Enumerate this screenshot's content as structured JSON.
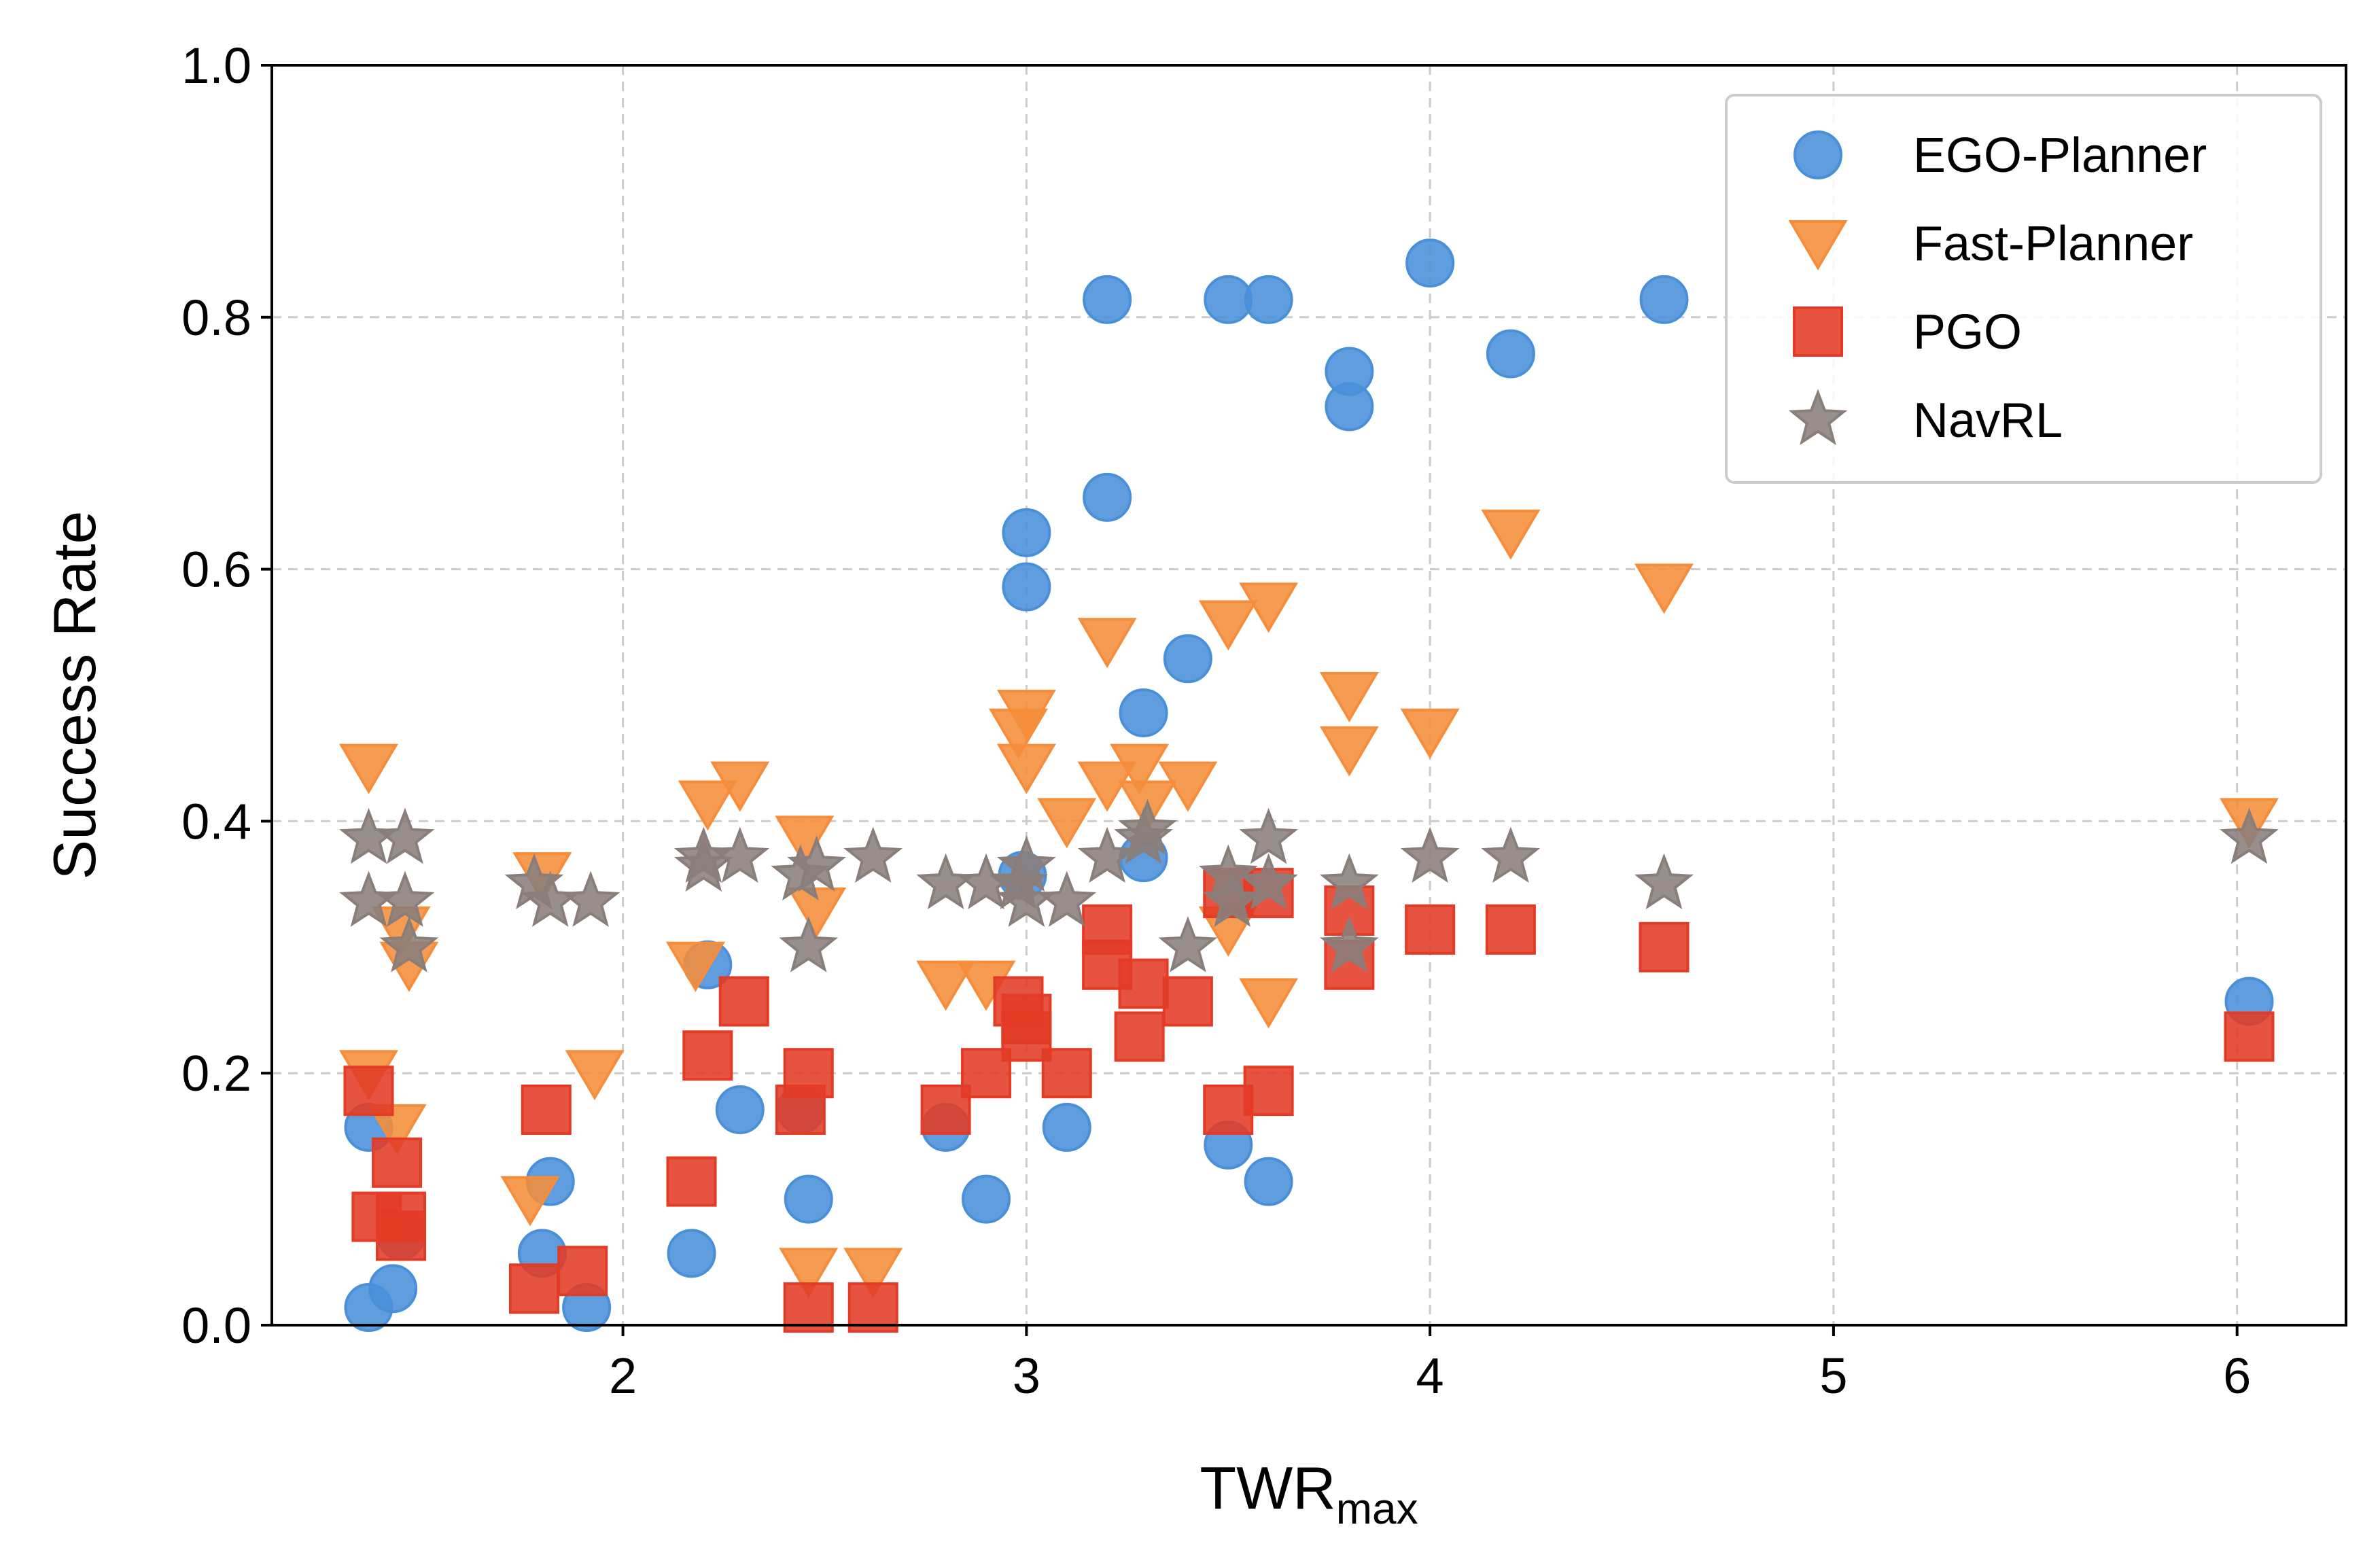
{
  "chart_data": {
    "type": "scatter",
    "xlabel": "TWR",
    "xlabel_subscript": "max",
    "ylabel": "Success Rate",
    "xlim": [
      1.13,
      6.27
    ],
    "ylim": [
      0.0,
      1.0
    ],
    "xticks": [
      2,
      3,
      4,
      5,
      6
    ],
    "yticks": [
      0.0,
      0.2,
      0.4,
      0.6,
      0.8,
      1.0
    ],
    "xtick_labels": [
      "2",
      "3",
      "4",
      "5",
      "6"
    ],
    "ytick_labels": [
      "0.0",
      "0.2",
      "0.4",
      "0.6",
      "0.8",
      "1.0"
    ],
    "grid": true,
    "legend_position": "top-right",
    "series": [
      {
        "name": "EGO-Planner",
        "marker": "circle",
        "color": "#4a90d9",
        "points": [
          [
            1.37,
            0.014
          ],
          [
            1.37,
            0.157
          ],
          [
            1.43,
            0.029
          ],
          [
            1.45,
            0.071
          ],
          [
            1.8,
            0.057
          ],
          [
            1.82,
            0.114
          ],
          [
            1.91,
            0.014
          ],
          [
            2.17,
            0.057
          ],
          [
            2.21,
            0.286
          ],
          [
            2.29,
            0.171
          ],
          [
            2.44,
            0.171
          ],
          [
            2.46,
            0.1
          ],
          [
            2.8,
            0.157
          ],
          [
            2.9,
            0.1
          ],
          [
            2.99,
            0.357
          ],
          [
            3.0,
            0.586
          ],
          [
            3.0,
            0.629
          ],
          [
            3.1,
            0.157
          ],
          [
            3.2,
            0.814
          ],
          [
            3.2,
            0.657
          ],
          [
            3.29,
            0.371
          ],
          [
            3.29,
            0.486
          ],
          [
            3.4,
            0.529
          ],
          [
            3.5,
            0.143
          ],
          [
            3.5,
            0.814
          ],
          [
            3.6,
            0.114
          ],
          [
            3.6,
            0.814
          ],
          [
            3.8,
            0.729
          ],
          [
            3.8,
            0.757
          ],
          [
            4.0,
            0.843
          ],
          [
            4.2,
            0.771
          ],
          [
            4.58,
            0.814
          ],
          [
            6.03,
            0.257
          ]
        ]
      },
      {
        "name": "Fast-Planner",
        "marker": "triangle-down",
        "color": "#f58d3a",
        "points": [
          [
            1.37,
            0.443
          ],
          [
            1.37,
            0.2
          ],
          [
            1.44,
            0.157
          ],
          [
            1.45,
            0.314
          ],
          [
            1.47,
            0.286
          ],
          [
            1.77,
            0.1
          ],
          [
            1.8,
            0.357
          ],
          [
            1.93,
            0.2
          ],
          [
            2.18,
            0.286
          ],
          [
            2.21,
            0.414
          ],
          [
            2.29,
            0.429
          ],
          [
            2.45,
            0.386
          ],
          [
            2.46,
            0.043
          ],
          [
            2.48,
            0.329
          ],
          [
            2.62,
            0.043
          ],
          [
            2.8,
            0.271
          ],
          [
            2.9,
            0.271
          ],
          [
            2.98,
            0.471
          ],
          [
            3.0,
            0.486
          ],
          [
            3.0,
            0.443
          ],
          [
            3.1,
            0.4
          ],
          [
            3.2,
            0.429
          ],
          [
            3.2,
            0.543
          ],
          [
            3.28,
            0.443
          ],
          [
            3.3,
            0.414
          ],
          [
            3.4,
            0.429
          ],
          [
            3.5,
            0.557
          ],
          [
            3.5,
            0.314
          ],
          [
            3.6,
            0.571
          ],
          [
            3.6,
            0.257
          ],
          [
            3.8,
            0.5
          ],
          [
            3.8,
            0.457
          ],
          [
            4.0,
            0.471
          ],
          [
            4.2,
            0.629
          ],
          [
            4.58,
            0.586
          ],
          [
            6.03,
            0.4
          ]
        ]
      },
      {
        "name": "PGO",
        "marker": "square",
        "color": "#e33b26",
        "points": [
          [
            1.37,
            0.186
          ],
          [
            1.39,
            0.086
          ],
          [
            1.44,
            0.129
          ],
          [
            1.45,
            0.086
          ],
          [
            1.45,
            0.071
          ],
          [
            1.78,
            0.029
          ],
          [
            1.81,
            0.171
          ],
          [
            1.9,
            0.043
          ],
          [
            2.17,
            0.114
          ],
          [
            2.21,
            0.214
          ],
          [
            2.3,
            0.257
          ],
          [
            2.44,
            0.171
          ],
          [
            2.46,
            0.2
          ],
          [
            2.46,
            0.014
          ],
          [
            2.62,
            0.014
          ],
          [
            2.8,
            0.171
          ],
          [
            2.9,
            0.2
          ],
          [
            2.98,
            0.257
          ],
          [
            3.0,
            0.243
          ],
          [
            3.0,
            0.229
          ],
          [
            3.1,
            0.2
          ],
          [
            3.2,
            0.314
          ],
          [
            3.2,
            0.286
          ],
          [
            3.29,
            0.271
          ],
          [
            3.28,
            0.229
          ],
          [
            3.4,
            0.257
          ],
          [
            3.5,
            0.343
          ],
          [
            3.5,
            0.171
          ],
          [
            3.6,
            0.343
          ],
          [
            3.6,
            0.186
          ],
          [
            3.8,
            0.329
          ],
          [
            3.8,
            0.286
          ],
          [
            4.0,
            0.314
          ],
          [
            4.2,
            0.314
          ],
          [
            4.58,
            0.3
          ],
          [
            6.03,
            0.229
          ]
        ]
      },
      {
        "name": "NavRL",
        "marker": "star",
        "color": "#8a7e7b",
        "points": [
          [
            1.37,
            0.386
          ],
          [
            1.37,
            0.336
          ],
          [
            1.46,
            0.386
          ],
          [
            1.46,
            0.336
          ],
          [
            1.47,
            0.3
          ],
          [
            1.78,
            0.35
          ],
          [
            1.82,
            0.336
          ],
          [
            1.92,
            0.336
          ],
          [
            2.2,
            0.371
          ],
          [
            2.2,
            0.364
          ],
          [
            2.29,
            0.371
          ],
          [
            2.44,
            0.357
          ],
          [
            2.46,
            0.3
          ],
          [
            2.48,
            0.364
          ],
          [
            2.62,
            0.371
          ],
          [
            2.8,
            0.35
          ],
          [
            2.9,
            0.35
          ],
          [
            2.98,
            0.35
          ],
          [
            3.0,
            0.364
          ],
          [
            3.0,
            0.336
          ],
          [
            3.1,
            0.336
          ],
          [
            3.2,
            0.371
          ],
          [
            3.29,
            0.386
          ],
          [
            3.3,
            0.393
          ],
          [
            3.4,
            0.3
          ],
          [
            3.5,
            0.357
          ],
          [
            3.51,
            0.336
          ],
          [
            3.6,
            0.386
          ],
          [
            3.6,
            0.35
          ],
          [
            3.8,
            0.35
          ],
          [
            3.8,
            0.3
          ],
          [
            4.0,
            0.371
          ],
          [
            4.2,
            0.371
          ],
          [
            4.58,
            0.35
          ],
          [
            6.03,
            0.386
          ]
        ]
      }
    ]
  }
}
